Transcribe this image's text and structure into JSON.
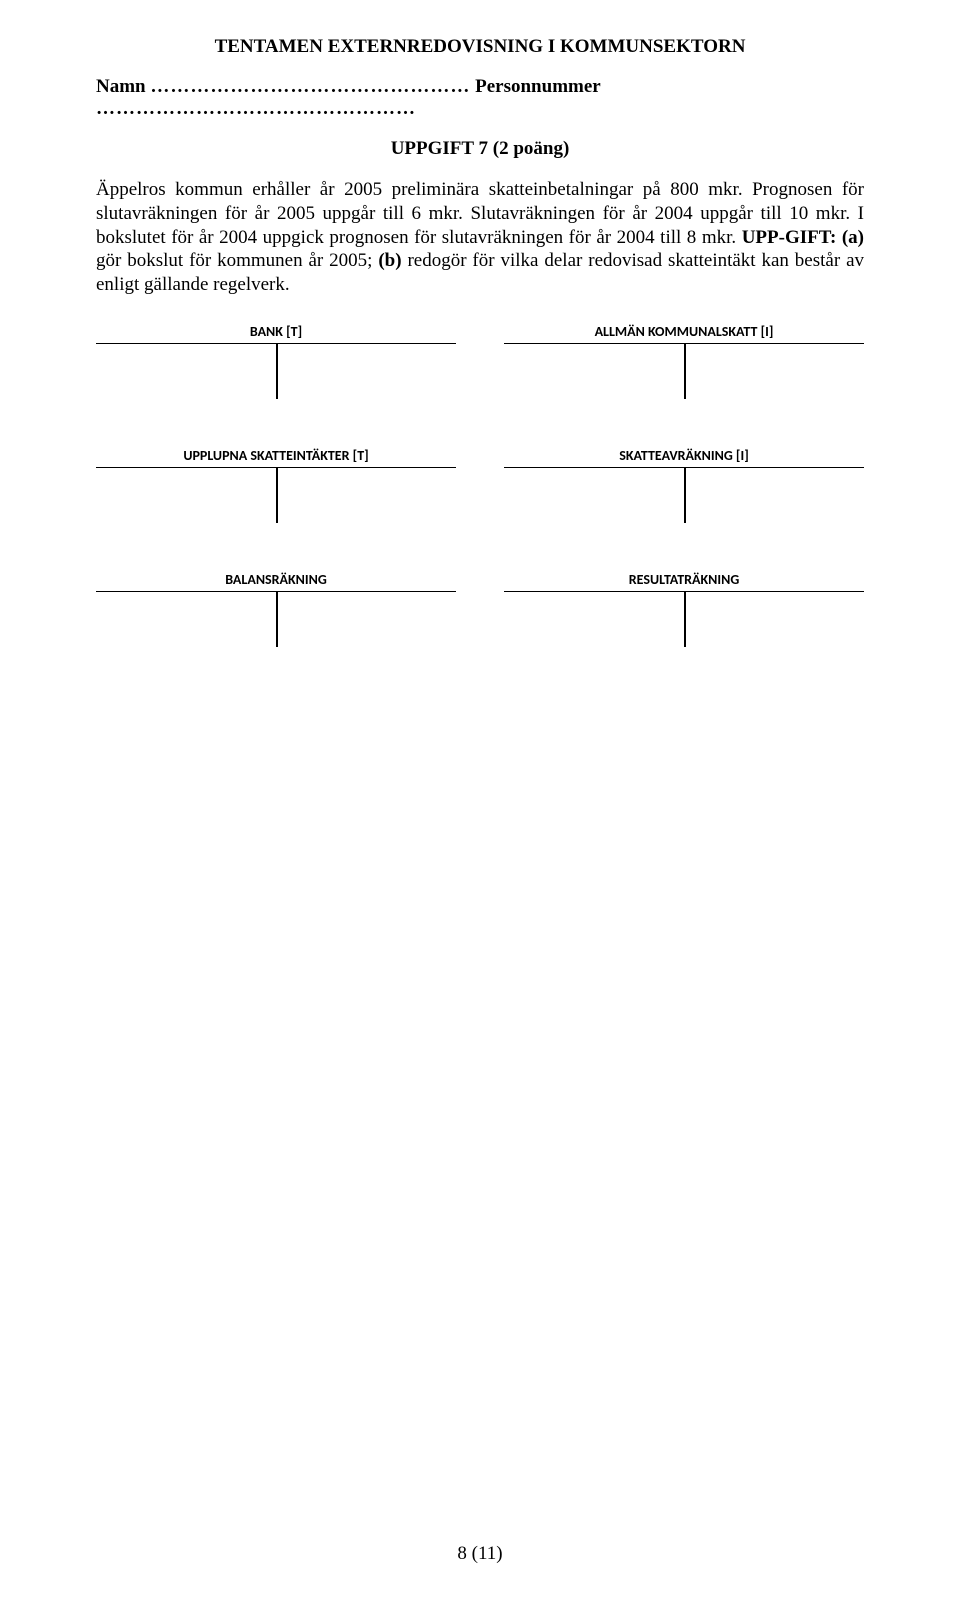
{
  "header": {
    "title": "TENTAMEN EXTERNREDOVISNING I KOMMUNSEKTORN",
    "name_label": "Namn",
    "dots1": "…………………………………………",
    "person_label": "Personnummer",
    "dots2": "…………………………………………"
  },
  "task": {
    "title": "UPPGIFT 7 (2 poäng)"
  },
  "body": {
    "p1a": "Äppelros kommun erhåller år 2005 preliminära skatteinbetalningar på 800 mkr. Prognosen för slutavräkningen för år 2005 uppgår till 6 mkr. Slutavräkningen för år 2004 uppgår till 10 mkr. I bokslutet för år 2004 uppgick prognosen för slutavräkningen för år 2004 till 8 mkr. ",
    "upp": "UPP-GIFT: (a)",
    "p1b": " gör bokslut för kommunen år 2005; ",
    "b_label": "(b)",
    "p1c": " redogör för vilka delar redovisad skatteintäkt kan består av enligt gällande regelverk."
  },
  "t_accounts": [
    {
      "title": "BANK [T]"
    },
    {
      "title": "ALLMÄN KOMMUNALSKATT [I]"
    },
    {
      "title": "UPPLUPNA SKATTEINTÄKTER [T]"
    },
    {
      "title": "SKATTEAVRÄKNING [I]"
    },
    {
      "title": "BALANSRÄKNING"
    },
    {
      "title": "RESULTATRÄKNING"
    }
  ],
  "footer": {
    "page": "8 (11)"
  }
}
